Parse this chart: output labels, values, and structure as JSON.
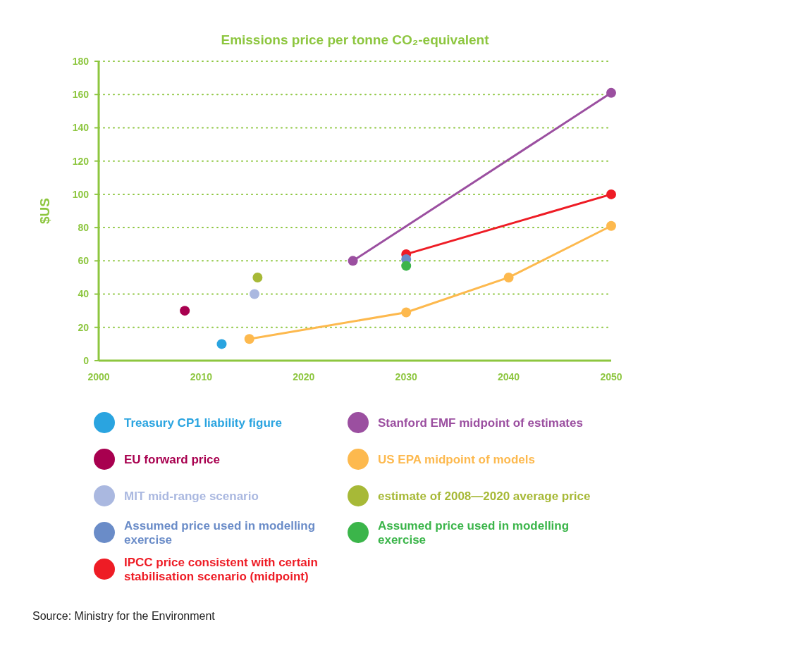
{
  "chart_data": {
    "type": "scatter",
    "title": "Emissions price per tonne CO₂-equivalent",
    "ylabel": "$US",
    "xlim": [
      2000,
      2050
    ],
    "xticks": [
      2000,
      2010,
      2020,
      2030,
      2040,
      2050
    ],
    "ylim": [
      0,
      180
    ],
    "yticks": [
      0,
      20,
      40,
      60,
      80,
      100,
      120,
      140,
      160,
      180
    ],
    "grid": "y",
    "legend": "bottom",
    "marker": "circle",
    "series": [
      {
        "name": "Treasury CP1 liability figure",
        "color": "#2aa4e0",
        "x": [
          2012
        ],
        "values": [
          10
        ]
      },
      {
        "name": "Stanford EMF midpoint of estimates",
        "color": "#9b4fa0",
        "type": "line",
        "x": [
          2024.8,
          2050
        ],
        "values": [
          60,
          161
        ]
      },
      {
        "name": "EU forward price",
        "color": "#a8004f",
        "x": [
          2008.4
        ],
        "values": [
          30
        ]
      },
      {
        "name": "US EPA midpoint of models",
        "color": "#fdb94e",
        "type": "line",
        "x": [
          2014.7,
          2030,
          2040,
          2050
        ],
        "values": [
          13,
          29,
          50,
          81
        ]
      },
      {
        "name": "MIT mid-range scenario",
        "color": "#aab8e0",
        "x": [
          2015.2
        ],
        "values": [
          40
        ]
      },
      {
        "name": "estimate of 2008—2020 average price",
        "color": "#a7b937",
        "x": [
          2015.5
        ],
        "values": [
          50
        ]
      },
      {
        "name": "Assumed price used in modelling exercise",
        "color": "#6a8cc8",
        "x": [
          2030
        ],
        "values": [
          61
        ]
      },
      {
        "name": "Assumed price used in modelling exercise",
        "color": "#3bb54a",
        "x": [
          2030
        ],
        "values": [
          57
        ]
      },
      {
        "name": "IPCC price consistent with certain stabilisation scenario (midpoint)",
        "color": "#ee1c25",
        "type": "line",
        "x": [
          2030,
          2050
        ],
        "values": [
          64,
          100
        ]
      }
    ],
    "annotations": [
      "Source: Ministry for the Environment"
    ]
  }
}
